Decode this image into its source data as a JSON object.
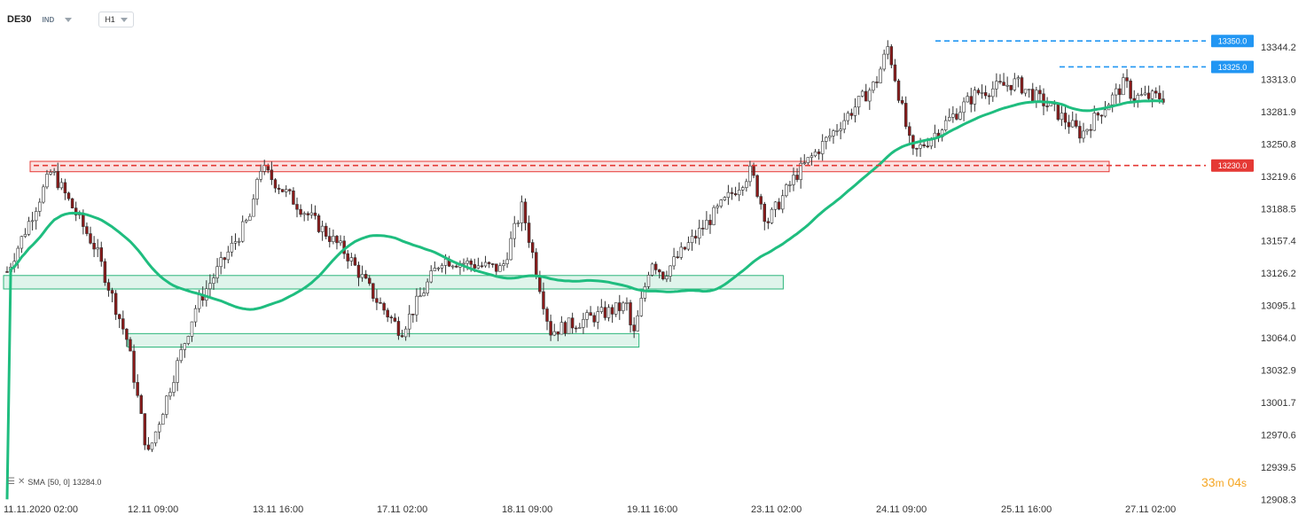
{
  "toolbar": {
    "symbol": "DE30",
    "market": "IND",
    "timeframe": "H1"
  },
  "indicator_legend": {
    "name": "SMA",
    "params": "[50, 0]",
    "value": "13284.0"
  },
  "timer": {
    "minutes": "33",
    "minutes_unit": "m",
    "seconds": "04",
    "seconds_unit": "s"
  },
  "colors": {
    "bull": "#ffffff",
    "bear": "#8b1a1a",
    "wick": "#333333",
    "sma": "#1fbd7f",
    "resistance": "#e53935",
    "support": "#2bb57a",
    "level_blue": "#2196f3",
    "grid": "#eeeeee"
  },
  "chart_data": {
    "type": "candlestick",
    "instrument": "DE30",
    "timeframe": "H1",
    "y_ticks": [
      "13344.2",
      "13313.0",
      "13281.9",
      "13250.8",
      "13219.6",
      "13188.5",
      "13157.4",
      "13126.2",
      "13095.1",
      "13064.0",
      "13032.9",
      "13001.7",
      "12970.6",
      "12939.5",
      "12908.3"
    ],
    "x_ticks": [
      "11.11.2020  02:00",
      "12.11  09:00",
      "13.11  16:00",
      "17.11  02:00",
      "18.11  09:00",
      "19.11  16:00",
      "23.11  02:00",
      "24.11  09:00",
      "25.11  16:00",
      "27.11  02:00"
    ],
    "ylim": [
      12908.3,
      13360
    ],
    "key_points": [
      {
        "x": "11.11.2020 02:00",
        "close": 13120
      },
      {
        "x": "11.11 14:00",
        "close": 13225
      },
      {
        "x": "12.11 01:00",
        "close": 13150
      },
      {
        "x": "12.11 09:00",
        "close": 13060
      },
      {
        "x": "12.11 14:00",
        "close": 12950
      },
      {
        "x": "13.11 02:00",
        "close": 13095
      },
      {
        "x": "13.11 16:00",
        "close": 13185
      },
      {
        "x": "13.11 20:00",
        "close": 13230
      },
      {
        "x": "16.11 06:00",
        "close": 13145
      },
      {
        "x": "17.11 02:00",
        "close": 13100
      },
      {
        "x": "17.11 08:00",
        "close": 13070
      },
      {
        "x": "17.11 18:00",
        "close": 13140
      },
      {
        "x": "18.11 09:00",
        "close": 13130
      },
      {
        "x": "18.11 14:00",
        "close": 13190
      },
      {
        "x": "18.11 21:00",
        "close": 13070
      },
      {
        "x": "19.11 16:00",
        "close": 13095
      },
      {
        "x": "19.11 20:00",
        "close": 13062
      },
      {
        "x": "20.11 08:00",
        "close": 13140
      },
      {
        "x": "20.11 16:00",
        "close": 13125
      },
      {
        "x": "23.11 02:00",
        "close": 13225
      },
      {
        "x": "23.11 06:00",
        "close": 13175
      },
      {
        "x": "23.11 13:00",
        "close": 13220
      },
      {
        "x": "24.11 09:00",
        "close": 13310
      },
      {
        "x": "24.11 12:00",
        "close": 13345
      },
      {
        "x": "24.11 18:00",
        "close": 13240
      },
      {
        "x": "25.11 10:00",
        "close": 13300
      },
      {
        "x": "25.11 20:00",
        "close": 13310
      },
      {
        "x": "26.11 06:00",
        "close": 13285
      },
      {
        "x": "26.11 14:00",
        "close": 13260
      },
      {
        "x": "27.11 02:00",
        "close": 13310
      },
      {
        "x": "27.11 04:00",
        "close": 13296
      }
    ],
    "series": [
      {
        "name": "SMA [50, 0]",
        "last_value": 13284.0
      }
    ],
    "horizontal_levels": [
      {
        "label": "13350.0",
        "value": 13350.0,
        "color": "#2196f3",
        "style": "dashed"
      },
      {
        "label": "13325.0",
        "value": 13325.0,
        "color": "#2196f3",
        "style": "dashed"
      },
      {
        "label": "13230.0",
        "value": 13230.0,
        "color": "#e53935",
        "style": "dashed"
      }
    ],
    "zones": [
      {
        "type": "resistance",
        "from": 13224,
        "to": 13234,
        "x_start": "11.11.2020 02:00",
        "x_end": "27.11 02:00"
      },
      {
        "type": "support",
        "from": 13111,
        "to": 13124,
        "x_start": "11.11.2020 02:00",
        "x_end": "23.11 10:00"
      },
      {
        "type": "support",
        "from": 13055,
        "to": 13068,
        "x_start": "12.11 09:00",
        "x_end": "20.11 00:00"
      }
    ],
    "grid": false,
    "legend": "bottom-left"
  }
}
